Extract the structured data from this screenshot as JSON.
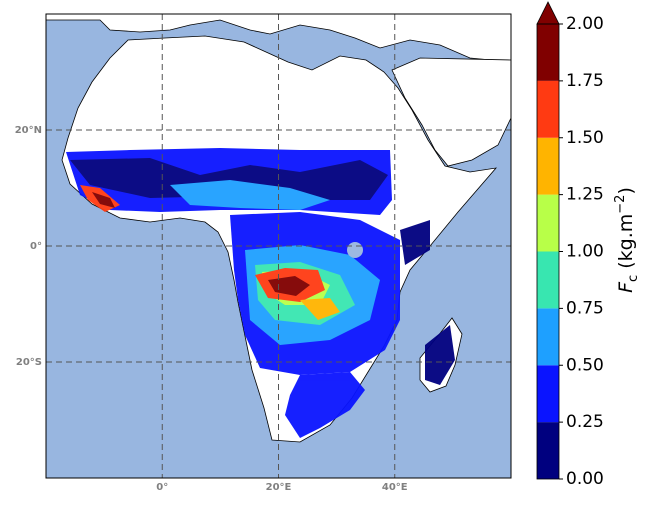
{
  "map": {
    "lon_range": [
      -20,
      60
    ],
    "lat_range": [
      -40,
      40
    ],
    "lat_lines": [
      {
        "value": 20,
        "label": "20°N"
      },
      {
        "value": 0,
        "label": "0°"
      },
      {
        "value": -20,
        "label": "20°S"
      }
    ],
    "lon_lines": [
      {
        "value": 0,
        "label": "0°"
      },
      {
        "value": 20,
        "label": "20°E"
      },
      {
        "value": 40,
        "label": "40°E"
      }
    ]
  },
  "colorbar": {
    "ticks": [
      {
        "value": 0,
        "label": "0.00"
      },
      {
        "value": 0.25,
        "label": "0.25"
      },
      {
        "value": 0.5,
        "label": "0.50"
      },
      {
        "value": 0.75,
        "label": "0.75"
      },
      {
        "value": 1,
        "label": "1.00"
      },
      {
        "value": 1.25,
        "label": "1.25"
      },
      {
        "value": 1.5,
        "label": "1.50"
      },
      {
        "value": 1.75,
        "label": "1.75"
      },
      {
        "value": 2,
        "label": "2.00"
      }
    ],
    "colors": [
      "#00007f",
      "#0a14ff",
      "#1ea0ff",
      "#38e6b0",
      "#b8ff48",
      "#ffb400",
      "#ff3a12",
      "#800000"
    ],
    "extend": "max",
    "label": {
      "main": "F",
      "sub": "c",
      "unit": " (kg.m",
      "sup": "−2",
      "close": ")"
    }
  }
}
